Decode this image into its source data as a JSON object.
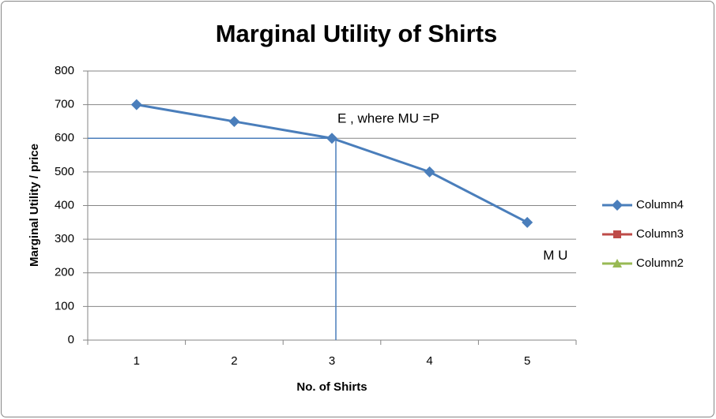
{
  "chart_data": {
    "type": "line",
    "title": "Marginal Utility of Shirts",
    "xlabel": "No. of Shirts",
    "ylabel": "Marginal Utility / price",
    "categories": [
      "1",
      "2",
      "3",
      "4",
      "5"
    ],
    "series": [
      {
        "name": "Column4",
        "color": "#4a7ebb",
        "marker": "diamond",
        "values": [
          700,
          650,
          600,
          500,
          350
        ]
      },
      {
        "name": "Column3",
        "color": "#be4b48",
        "marker": "square",
        "values": [
          null,
          null,
          null,
          null,
          null
        ]
      },
      {
        "name": "Column2",
        "color": "#98b954",
        "marker": "triangle",
        "values": [
          null,
          null,
          null,
          null,
          null
        ]
      }
    ],
    "annotations": [
      {
        "text": "E ,  where MU =P",
        "category": "3",
        "value": 600
      },
      {
        "text": "M U",
        "category": "5",
        "value": 250
      }
    ],
    "reference": {
      "y": 600,
      "x": "3"
    },
    "ylim": [
      0,
      800
    ],
    "yticks": [
      0,
      100,
      200,
      300,
      400,
      500,
      600,
      700,
      800
    ],
    "grid": true,
    "legend": "right"
  }
}
